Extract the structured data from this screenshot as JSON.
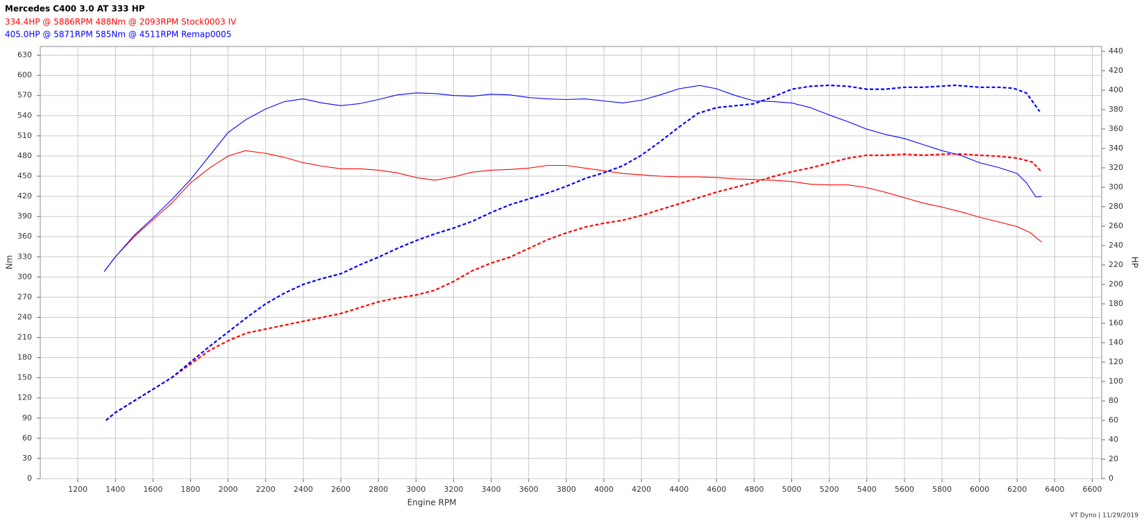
{
  "chart_data": {
    "type": "line",
    "title": "Mercedes C400 3.0 AT 333 HP",
    "subtitles": [
      {
        "text": "334.4HP @  5886RPM  488Nm @ 2093RPM  Stock0003 IV",
        "color": "#ff0000"
      },
      {
        "text": "405.0HP @  5871RPM  585Nm @ 4511RPM  Remap0005",
        "color": "#0000ff"
      }
    ],
    "x_label": "Engine RPM",
    "y_label": "Nm",
    "y2_label": "HP",
    "footer": "VT Dyno | 11/29/2019",
    "xlim": [
      1000,
      6650
    ],
    "xticks": [
      1200,
      1400,
      1600,
      1800,
      2000,
      2200,
      2400,
      2600,
      2800,
      3000,
      3200,
      3400,
      3600,
      3800,
      4000,
      4200,
      4400,
      4600,
      4800,
      5000,
      5200,
      5400,
      5600,
      5800,
      6000,
      6200,
      6400,
      6600
    ],
    "ylim": [
      0,
      643
    ],
    "yticks": [
      0,
      30,
      60,
      90,
      120,
      150,
      180,
      210,
      240,
      270,
      300,
      330,
      360,
      390,
      420,
      450,
      480,
      510,
      540,
      570,
      600,
      630
    ],
    "y2lim": [
      0,
      445
    ],
    "y2ticks": [
      0,
      20,
      40,
      60,
      80,
      100,
      120,
      140,
      160,
      180,
      200,
      220,
      240,
      260,
      280,
      300,
      320,
      340,
      360,
      380,
      400,
      420,
      440
    ],
    "grid": true,
    "series": [
      {
        "color": "#ff0000",
        "dashed": false,
        "x": [
          1340,
          1400,
          1500,
          1600,
          1700,
          1800,
          1900,
          2000,
          2093,
          2200,
          2300,
          2400,
          2500,
          2600,
          2700,
          2800,
          2900,
          3000,
          3100,
          3200,
          3300,
          3400,
          3500,
          3600,
          3700,
          3800,
          3900,
          4000,
          4100,
          4200,
          4300,
          4400,
          4500,
          4600,
          4700,
          4800,
          4900,
          5000,
          5100,
          5200,
          5300,
          5400,
          5500,
          5600,
          5700,
          5800,
          5900,
          6000,
          6100,
          6200,
          6270,
          6330
        ],
        "values": [
          308,
          330,
          360,
          385,
          410,
          440,
          462,
          480,
          488,
          484,
          478,
          470,
          465,
          461,
          461,
          459,
          455,
          448,
          444,
          449,
          456,
          459,
          460,
          462,
          466,
          466,
          462,
          458,
          454,
          452,
          450,
          449,
          449,
          448,
          446,
          445,
          444,
          442,
          438,
          437,
          437,
          433,
          426,
          418,
          410,
          404,
          397,
          389,
          382,
          375,
          366,
          352
        ]
      },
      {
        "color": "#0000ff",
        "dashed": false,
        "x": [
          1340,
          1400,
          1500,
          1600,
          1700,
          1800,
          1900,
          2000,
          2100,
          2200,
          2300,
          2400,
          2500,
          2600,
          2700,
          2800,
          2900,
          3000,
          3100,
          3200,
          3300,
          3400,
          3500,
          3600,
          3700,
          3800,
          3900,
          4000,
          4100,
          4200,
          4300,
          4400,
          4511,
          4600,
          4700,
          4800,
          4900,
          5000,
          5100,
          5200,
          5300,
          5400,
          5500,
          5600,
          5700,
          5800,
          5900,
          6000,
          6100,
          6200,
          6250,
          6300,
          6330
        ],
        "values": [
          308,
          330,
          362,
          388,
          415,
          445,
          480,
          515,
          535,
          550,
          561,
          565,
          559,
          555,
          558,
          564,
          571,
          574,
          573,
          570,
          569,
          572,
          571,
          567,
          565,
          564,
          565,
          562,
          559,
          563,
          571,
          580,
          585,
          580,
          570,
          562,
          561,
          559,
          552,
          541,
          531,
          520,
          512,
          506,
          497,
          488,
          481,
          470,
          463,
          454,
          440,
          419,
          420
        ]
      },
      {
        "color": "#ff0000",
        "dashed": true,
        "axis": "y2",
        "x": [
          1350,
          1400,
          1500,
          1600,
          1700,
          1800,
          1900,
          2000,
          2100,
          2200,
          2300,
          2400,
          2500,
          2600,
          2700,
          2800,
          2900,
          3000,
          3100,
          3200,
          3300,
          3400,
          3500,
          3600,
          3700,
          3800,
          3900,
          4000,
          4100,
          4200,
          4300,
          4400,
          4500,
          4600,
          4700,
          4800,
          4900,
          5000,
          5100,
          5200,
          5300,
          5400,
          5500,
          5600,
          5700,
          5800,
          5886,
          6000,
          6100,
          6200,
          6280,
          6330
        ],
        "values": [
          60,
          68,
          80,
          92,
          104,
          118,
          132,
          142,
          150,
          154,
          158,
          162,
          166,
          170,
          176,
          182,
          186,
          189,
          194,
          203,
          214,
          222,
          228,
          237,
          246,
          253,
          259,
          263,
          266,
          271,
          277,
          283,
          289,
          295,
          300,
          305,
          311,
          316,
          320,
          325,
          330,
          333,
          333,
          334,
          333,
          334,
          334.4,
          333,
          332,
          330,
          326,
          316
        ]
      },
      {
        "color": "#0000ff",
        "dashed": true,
        "axis": "y2",
        "x": [
          1350,
          1400,
          1500,
          1600,
          1700,
          1800,
          1900,
          2000,
          2100,
          2200,
          2300,
          2400,
          2500,
          2600,
          2700,
          2800,
          2900,
          3000,
          3100,
          3200,
          3300,
          3400,
          3500,
          3600,
          3700,
          3800,
          3900,
          4000,
          4100,
          4200,
          4300,
          4400,
          4500,
          4600,
          4700,
          4800,
          4900,
          5000,
          5100,
          5200,
          5300,
          5400,
          5500,
          5600,
          5700,
          5871,
          6000,
          6100,
          6180,
          6250,
          6320
        ],
        "values": [
          60,
          68,
          80,
          92,
          104,
          120,
          136,
          151,
          166,
          180,
          191,
          200,
          206,
          211,
          220,
          228,
          237,
          245,
          252,
          258,
          265,
          274,
          282,
          288,
          294,
          301,
          309,
          315,
          322,
          333,
          347,
          362,
          376,
          382,
          384,
          386,
          393,
          401,
          404,
          405,
          404,
          401,
          401,
          403,
          403,
          405,
          403,
          403,
          402,
          397,
          378
        ]
      }
    ]
  }
}
